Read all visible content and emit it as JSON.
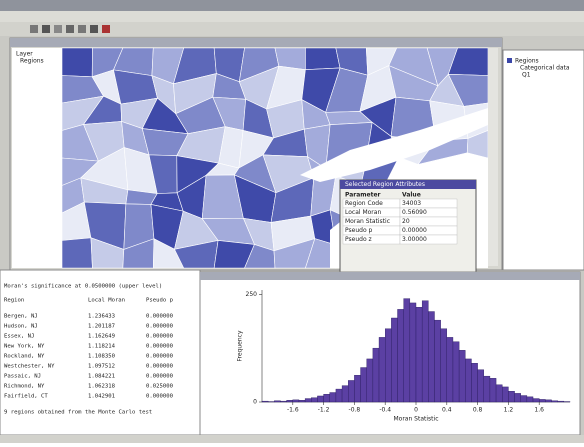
{
  "legend_panel": {
    "title": "Layer",
    "item": "Regions"
  },
  "region_legend": {
    "title": "Regions",
    "header": "Categorical data",
    "item": "Q1"
  },
  "dialog": {
    "title": "Selected Region Attributes",
    "header": [
      "Parameter",
      "Value"
    ],
    "rows": [
      [
        "Region Code",
        "34003"
      ],
      [
        "Local Moran",
        "0.56090"
      ],
      [
        "Moran Statistic",
        "20"
      ],
      [
        "Pseudo p",
        "0.00000"
      ],
      [
        "Pseudo z",
        "3.00000"
      ]
    ]
  },
  "report": {
    "title": "Moran's significance at 0.0500000 (upper level)",
    "header": [
      "Region",
      "Local Moran",
      "Pseudo p"
    ],
    "rows": [
      [
        "Bergen, NJ",
        "1.236433",
        "0.000000"
      ],
      [
        "Hudson, NJ",
        "1.201187",
        "0.000000"
      ],
      [
        "Essex, NJ",
        "1.162649",
        "0.000000"
      ],
      [
        "New York, NY",
        "1.118214",
        "0.000000"
      ],
      [
        "Rockland, NY",
        "1.108350",
        "0.000000"
      ],
      [
        "Westchester, NY",
        "1.097512",
        "0.000000"
      ],
      [
        "Passaic, NJ",
        "1.084221",
        "0.000000"
      ],
      [
        "Richmond, NY",
        "1.062318",
        "0.025000"
      ],
      [
        "Fairfield, CT",
        "1.042901",
        "0.000000"
      ]
    ],
    "footer": "9 regions obtained from the Monte Carlo test"
  },
  "chart_data": {
    "type": "histogram",
    "xlabel": "Moran Statistic",
    "ylabel": "Frequency",
    "color": "#5b40a3",
    "bins": [
      -2,
      -1.92,
      -1.84,
      -1.76,
      -1.68,
      -1.6,
      -1.52,
      -1.44,
      -1.36,
      -1.28,
      -1.2,
      -1.12,
      -1.04,
      -0.96,
      -0.88,
      -0.8,
      -0.72,
      -0.64,
      -0.56,
      -0.48,
      -0.4,
      -0.32,
      -0.24,
      -0.16,
      -0.08,
      0,
      0.08,
      0.16,
      0.24,
      0.32,
      0.4,
      0.48,
      0.56,
      0.64,
      0.72,
      0.8,
      0.88,
      0.96,
      1.04,
      1.12,
      1.2,
      1.28,
      1.36,
      1.44,
      1.52,
      1.6,
      1.68,
      1.76,
      1.84,
      1.92,
      2
    ],
    "counts": [
      2,
      1,
      3,
      2,
      4,
      5,
      4,
      8,
      10,
      14,
      18,
      22,
      30,
      38,
      50,
      62,
      80,
      100,
      125,
      150,
      170,
      195,
      215,
      240,
      230,
      220,
      235,
      210,
      190,
      170,
      150,
      140,
      120,
      100,
      90,
      75,
      60,
      55,
      40,
      35,
      25,
      20,
      15,
      12,
      8,
      6,
      5,
      3,
      2,
      1
    ],
    "xlim": [
      -2,
      2
    ],
    "xticks": [
      -1.6,
      -1.2,
      -0.8,
      -0.4,
      0,
      0.4,
      0.8,
      1.2,
      1.6
    ],
    "ylim": [
      0,
      260
    ],
    "yticks": [
      0,
      250
    ]
  }
}
